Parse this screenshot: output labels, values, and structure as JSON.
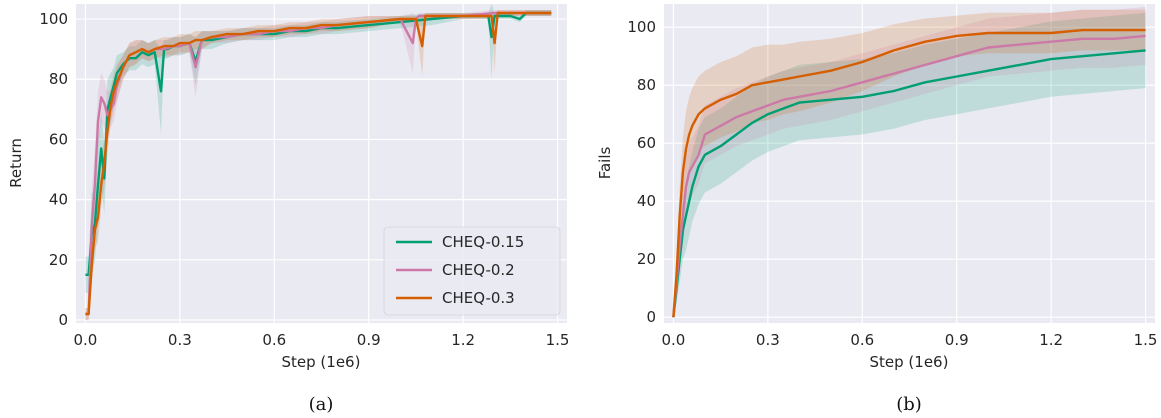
{
  "colors": {
    "background": "#eaeaf2",
    "grid": "#ffffff",
    "series": [
      "#009e73",
      "#cc79a7",
      "#d55e00"
    ]
  },
  "chart_data": [
    {
      "type": "line",
      "caption": "(a)",
      "xlabel": "Step (1e6)",
      "ylabel": "Return",
      "xlim": [
        -0.03,
        1.53
      ],
      "ylim": [
        -1,
        105
      ],
      "xticks": [
        "0.0",
        "0.3",
        "0.6",
        "0.9",
        "1.2",
        "1.5"
      ],
      "yticks": [
        "0",
        "20",
        "40",
        "60",
        "80",
        "100"
      ],
      "grid": true,
      "legend": "bottom-right",
      "series": [
        {
          "name": "CHEQ-0.15",
          "x": [
            0.0,
            0.01,
            0.02,
            0.03,
            0.04,
            0.05,
            0.06,
            0.07,
            0.08,
            0.09,
            0.1,
            0.12,
            0.14,
            0.16,
            0.18,
            0.2,
            0.22,
            0.24,
            0.25,
            0.26,
            0.28,
            0.3,
            0.33,
            0.35,
            0.37,
            0.4,
            0.45,
            0.5,
            0.55,
            0.6,
            0.65,
            0.7,
            0.75,
            0.8,
            0.9,
            1.0,
            1.1,
            1.2,
            1.28,
            1.29,
            1.3,
            1.35,
            1.38,
            1.4,
            1.45,
            1.48
          ],
          "y": [
            15,
            15,
            28,
            32,
            45,
            57,
            47,
            70,
            74,
            78,
            82,
            85,
            87,
            87,
            89,
            88,
            89,
            76,
            90,
            90,
            91,
            91,
            92,
            86,
            93,
            93,
            94,
            95,
            95,
            95,
            96,
            96,
            97,
            97,
            98,
            99,
            100,
            101,
            101,
            94,
            101,
            101,
            100,
            102,
            102,
            102
          ],
          "band": [
            6,
            6,
            14,
            12,
            14,
            12,
            12,
            10,
            8,
            6,
            6,
            4,
            4,
            4,
            4,
            4,
            4,
            14,
            3,
            3,
            3,
            3,
            3,
            8,
            3,
            3,
            2,
            2,
            2,
            2,
            2,
            2,
            2,
            2,
            2,
            2,
            2,
            1,
            1,
            14,
            1,
            1,
            1,
            1,
            1,
            1
          ]
        },
        {
          "name": "CHEQ-0.2",
          "x": [
            0.0,
            0.01,
            0.02,
            0.03,
            0.04,
            0.05,
            0.06,
            0.07,
            0.08,
            0.09,
            0.1,
            0.12,
            0.14,
            0.16,
            0.18,
            0.2,
            0.22,
            0.25,
            0.28,
            0.3,
            0.33,
            0.35,
            0.37,
            0.4,
            0.45,
            0.5,
            0.55,
            0.6,
            0.65,
            0.7,
            0.75,
            0.8,
            0.9,
            1.0,
            1.04,
            1.05,
            1.06,
            1.1,
            1.2,
            1.3,
            1.4,
            1.48
          ],
          "y": [
            2,
            2,
            31,
            45,
            66,
            74,
            72,
            68,
            70,
            72,
            78,
            84,
            88,
            89,
            90,
            89,
            90,
            90,
            91,
            91,
            92,
            84,
            93,
            94,
            94,
            95,
            95,
            96,
            96,
            97,
            97,
            98,
            99,
            100,
            92,
            100,
            101,
            101,
            101,
            102,
            102,
            102
          ],
          "band": [
            2,
            2,
            12,
            12,
            10,
            8,
            8,
            8,
            6,
            6,
            6,
            4,
            4,
            4,
            3,
            3,
            3,
            3,
            3,
            3,
            3,
            10,
            3,
            2,
            2,
            2,
            2,
            2,
            2,
            2,
            2,
            2,
            2,
            1,
            10,
            1,
            1,
            1,
            1,
            1,
            1,
            1
          ]
        },
        {
          "name": "CHEQ-0.3",
          "x": [
            0.0,
            0.01,
            0.02,
            0.03,
            0.04,
            0.05,
            0.06,
            0.07,
            0.08,
            0.09,
            0.1,
            0.12,
            0.14,
            0.16,
            0.18,
            0.2,
            0.22,
            0.25,
            0.28,
            0.3,
            0.33,
            0.35,
            0.37,
            0.4,
            0.45,
            0.5,
            0.55,
            0.6,
            0.65,
            0.7,
            0.75,
            0.8,
            0.9,
            1.0,
            1.05,
            1.07,
            1.08,
            1.1,
            1.2,
            1.29,
            1.3,
            1.31,
            1.4,
            1.48
          ],
          "y": [
            2,
            2,
            18,
            30,
            34,
            45,
            52,
            63,
            71,
            76,
            79,
            84,
            88,
            89,
            90,
            89,
            90,
            91,
            91,
            92,
            92,
            93,
            93,
            94,
            95,
            95,
            96,
            96,
            97,
            97,
            98,
            98,
            99,
            100,
            100,
            91,
            101,
            101,
            101,
            101,
            92,
            102,
            102,
            102
          ],
          "band": [
            2,
            2,
            6,
            6,
            8,
            8,
            8,
            8,
            6,
            6,
            6,
            4,
            4,
            4,
            3,
            3,
            3,
            3,
            3,
            3,
            3,
            3,
            3,
            2,
            2,
            2,
            2,
            2,
            2,
            2,
            2,
            2,
            2,
            1,
            1,
            10,
            1,
            1,
            1,
            1,
            10,
            1,
            1,
            1
          ]
        }
      ]
    },
    {
      "type": "line",
      "caption": "(b)",
      "xlabel": "Step (1e6)",
      "ylabel": "Fails",
      "xlim": [
        -0.03,
        1.53
      ],
      "ylim": [
        -2,
        108
      ],
      "xticks": [
        "0.0",
        "0.3",
        "0.6",
        "0.9",
        "1.2",
        "1.5"
      ],
      "yticks": [
        "0",
        "20",
        "40",
        "60",
        "80",
        "100"
      ],
      "grid": true,
      "series": [
        {
          "name": "CHEQ-0.15",
          "x": [
            0.0,
            0.01,
            0.02,
            0.03,
            0.04,
            0.05,
            0.06,
            0.08,
            0.1,
            0.15,
            0.2,
            0.25,
            0.3,
            0.35,
            0.4,
            0.5,
            0.6,
            0.7,
            0.8,
            0.9,
            1.0,
            1.1,
            1.2,
            1.3,
            1.4,
            1.5
          ],
          "y": [
            0,
            10,
            20,
            30,
            35,
            40,
            45,
            52,
            56,
            59,
            63,
            67,
            70,
            72,
            74,
            75,
            76,
            78,
            81,
            83,
            85,
            87,
            89,
            90,
            91,
            92
          ],
          "band": [
            0,
            5,
            8,
            10,
            12,
            12,
            12,
            13,
            13,
            13,
            13,
            13,
            13,
            13,
            13,
            13,
            13,
            13,
            13,
            13,
            13,
            13,
            13,
            13,
            13,
            13
          ]
        },
        {
          "name": "CHEQ-0.2",
          "x": [
            0.0,
            0.01,
            0.02,
            0.03,
            0.04,
            0.05,
            0.06,
            0.08,
            0.1,
            0.15,
            0.2,
            0.25,
            0.3,
            0.35,
            0.4,
            0.5,
            0.6,
            0.7,
            0.8,
            0.9,
            1.0,
            1.1,
            1.2,
            1.3,
            1.4,
            1.5
          ],
          "y": [
            0,
            12,
            25,
            35,
            45,
            50,
            52,
            56,
            63,
            66,
            69,
            71,
            73,
            75,
            76,
            78,
            81,
            84,
            87,
            90,
            93,
            94,
            95,
            96,
            96,
            97
          ],
          "band": [
            0,
            5,
            8,
            10,
            10,
            10,
            10,
            10,
            10,
            10,
            10,
            10,
            10,
            10,
            10,
            10,
            10,
            10,
            10,
            10,
            10,
            10,
            10,
            10,
            10,
            10
          ]
        },
        {
          "name": "CHEQ-0.3",
          "x": [
            0.0,
            0.01,
            0.02,
            0.03,
            0.04,
            0.05,
            0.06,
            0.08,
            0.1,
            0.15,
            0.2,
            0.25,
            0.3,
            0.35,
            0.4,
            0.5,
            0.6,
            0.7,
            0.8,
            0.9,
            1.0,
            1.1,
            1.2,
            1.3,
            1.4,
            1.5
          ],
          "y": [
            0,
            15,
            35,
            50,
            58,
            63,
            66,
            70,
            72,
            75,
            77,
            80,
            81,
            82,
            83,
            85,
            88,
            92,
            95,
            97,
            98,
            98,
            98,
            99,
            99,
            99
          ],
          "band": [
            0,
            6,
            10,
            12,
            13,
            13,
            13,
            13,
            13,
            13,
            13,
            13,
            13,
            12,
            12,
            11,
            10,
            9,
            8,
            7,
            7,
            7,
            7,
            7,
            7,
            7
          ]
        }
      ]
    }
  ]
}
